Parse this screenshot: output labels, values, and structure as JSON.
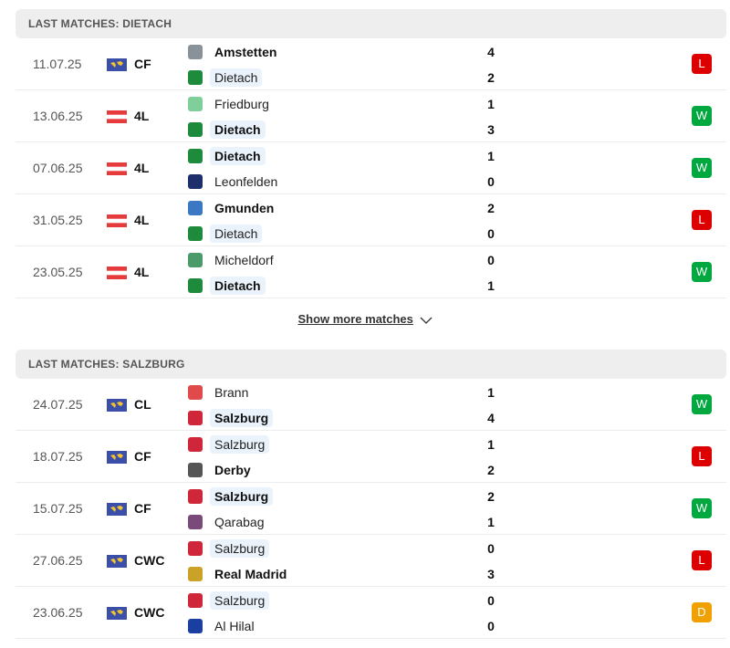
{
  "colors": {
    "win": "#00a83f",
    "loss": "#dc0000",
    "draw": "#f0a000",
    "highlight": "#eaf3fc"
  },
  "sections": [
    {
      "title": "LAST MATCHES: DIETACH",
      "highlight": "Dietach",
      "matches": [
        {
          "date": "11.07.25",
          "flag": "world-flag",
          "comp": "CF",
          "home": "Amstetten",
          "away": "Dietach",
          "hs": "4",
          "as": "2",
          "result": "L",
          "home_logo": "#8a9299",
          "away_logo": "#1e8a3c"
        },
        {
          "date": "13.06.25",
          "flag": "austria-flag",
          "comp": "4L",
          "home": "Friedburg",
          "away": "Dietach",
          "hs": "1",
          "as": "3",
          "result": "W",
          "home_logo": "#7fcf9a",
          "away_logo": "#1e8a3c"
        },
        {
          "date": "07.06.25",
          "flag": "austria-flag",
          "comp": "4L",
          "home": "Dietach",
          "away": "Leonfelden",
          "hs": "1",
          "as": "0",
          "result": "W",
          "home_logo": "#1e8a3c",
          "away_logo": "#1c2f6b"
        },
        {
          "date": "31.05.25",
          "flag": "austria-flag",
          "comp": "4L",
          "home": "Gmunden",
          "away": "Dietach",
          "hs": "2",
          "as": "0",
          "result": "L",
          "home_logo": "#3b78c4",
          "away_logo": "#1e8a3c"
        },
        {
          "date": "23.05.25",
          "flag": "austria-flag",
          "comp": "4L",
          "home": "Micheldorf",
          "away": "Dietach",
          "hs": "0",
          "as": "1",
          "result": "W",
          "home_logo": "#4a9a6a",
          "away_logo": "#1e8a3c"
        }
      ]
    },
    {
      "title": "LAST MATCHES: SALZBURG",
      "highlight": "Salzburg",
      "matches": [
        {
          "date": "24.07.25",
          "flag": "world-flag",
          "comp": "CL",
          "home": "Brann",
          "away": "Salzburg",
          "hs": "1",
          "as": "4",
          "result": "W",
          "home_logo": "#e04a4a",
          "away_logo": "#d0263a"
        },
        {
          "date": "18.07.25",
          "flag": "world-flag",
          "comp": "CF",
          "home": "Salzburg",
          "away": "Derby",
          "hs": "1",
          "as": "2",
          "result": "L",
          "home_logo": "#d0263a",
          "away_logo": "#555555"
        },
        {
          "date": "15.07.25",
          "flag": "world-flag",
          "comp": "CF",
          "home": "Salzburg",
          "away": "Qarabag",
          "hs": "2",
          "as": "1",
          "result": "W",
          "home_logo": "#d0263a",
          "away_logo": "#7a4a7a"
        },
        {
          "date": "27.06.25",
          "flag": "world-flag",
          "comp": "CWC",
          "home": "Salzburg",
          "away": "Real Madrid",
          "hs": "0",
          "as": "3",
          "result": "L",
          "home_logo": "#d0263a",
          "away_logo": "#c9a227"
        },
        {
          "date": "23.06.25",
          "flag": "world-flag",
          "comp": "CWC",
          "home": "Salzburg",
          "away": "Al Hilal",
          "hs": "0",
          "as": "0",
          "result": "D",
          "home_logo": "#d0263a",
          "away_logo": "#1a3fa0"
        }
      ]
    }
  ],
  "show_more": "Show more matches"
}
